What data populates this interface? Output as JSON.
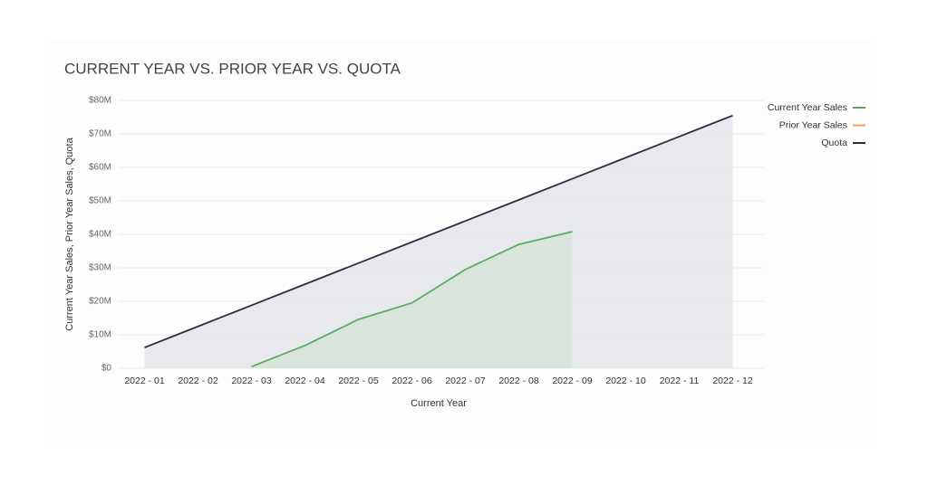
{
  "chart_data": {
    "type": "line",
    "title": "CURRENT YEAR VS. PRIOR YEAR VS. QUOTA",
    "x_label": "Current Year",
    "y_label": "Current Year Sales, Prior Year Sales, Quota",
    "categories": [
      "2022 - 01",
      "2022 - 02",
      "2022 - 03",
      "2022 - 04",
      "2022 - 05",
      "2022 - 06",
      "2022 - 07",
      "2022 - 08",
      "2022 - 09",
      "2022 - 10",
      "2022 - 11",
      "2022 - 12"
    ],
    "series": [
      {
        "name": "Current Year Sales",
        "color": "#5aab61",
        "area": "#d7e4da",
        "values": [
          null,
          null,
          500000,
          6800000,
          14600000,
          19500000,
          29500000,
          37000000,
          40800000,
          null,
          null,
          null
        ]
      },
      {
        "name": "Prior Year Sales",
        "color": "#f5a04a",
        "values": [
          null,
          null,
          null,
          null,
          null,
          null,
          null,
          null,
          null,
          null,
          null,
          null
        ]
      },
      {
        "name": "Quota",
        "color": "#2e2d3f",
        "area": "#e6e7ea",
        "values": [
          6200000,
          12500000,
          18800000,
          25100000,
          31400000,
          37700000,
          44000000,
          50300000,
          56600000,
          62900000,
          69200000,
          75500000
        ]
      }
    ],
    "ylim": [
      0,
      80000000
    ],
    "yticks": [
      {
        "value": 0,
        "label": "$0"
      },
      {
        "value": 10000000,
        "label": "$10M"
      },
      {
        "value": 20000000,
        "label": "$20M"
      },
      {
        "value": 30000000,
        "label": "$30M"
      },
      {
        "value": 40000000,
        "label": "$40M"
      },
      {
        "value": 50000000,
        "label": "$50M"
      },
      {
        "value": 60000000,
        "label": "$60M"
      },
      {
        "value": 70000000,
        "label": "$70M"
      },
      {
        "value": 80000000,
        "label": "$80M"
      }
    ],
    "grid": true,
    "legend": "top-right"
  }
}
